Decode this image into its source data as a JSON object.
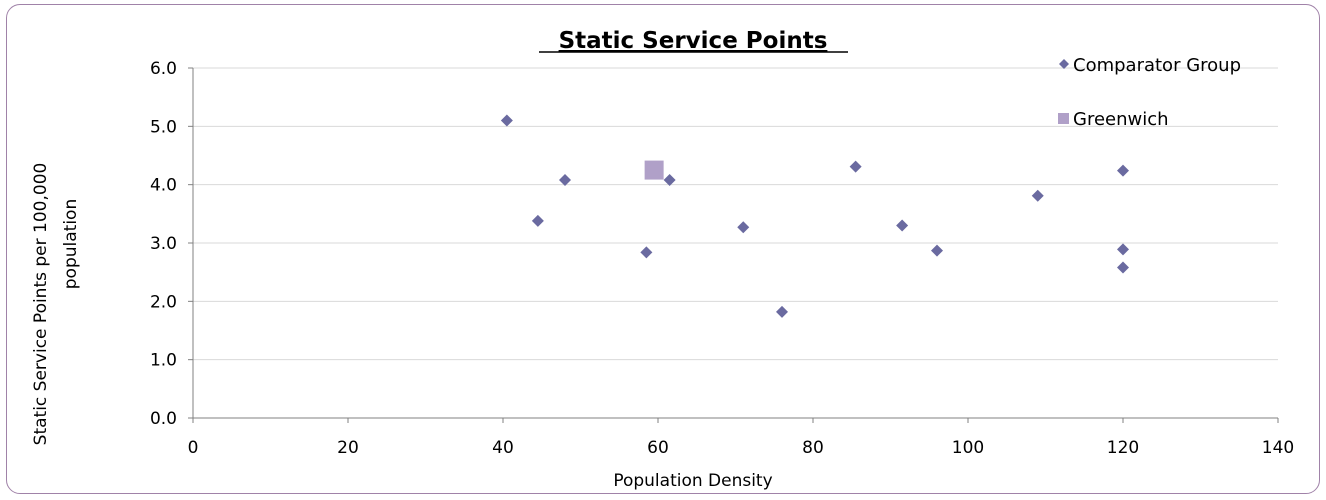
{
  "chart_data": {
    "type": "scatter",
    "title": "Static Service Points",
    "xlabel": "Population Density",
    "ylabel_lines": [
      "Static Service Points per 100,000",
      "population"
    ],
    "xlim": [
      0,
      140
    ],
    "ylim": [
      0,
      6
    ],
    "x_ticks": [
      0,
      20,
      40,
      60,
      80,
      100,
      120,
      140
    ],
    "y_ticks": [
      "0.0",
      "1.0",
      "2.0",
      "3.0",
      "4.0",
      "5.0",
      "6.0"
    ],
    "grid": "horizontal",
    "legend_position": "top-right",
    "series": [
      {
        "name": "Comparator Group",
        "marker": "diamond",
        "color": "#6a6aa0",
        "points": [
          [
            40.5,
            5.1
          ],
          [
            44.5,
            3.38
          ],
          [
            48,
            4.08
          ],
          [
            58.5,
            2.84
          ],
          [
            61.5,
            4.08
          ],
          [
            71,
            3.27
          ],
          [
            76,
            1.82
          ],
          [
            85.5,
            4.31
          ],
          [
            91.5,
            3.3
          ],
          [
            96,
            2.87
          ],
          [
            109,
            3.81
          ],
          [
            120,
            4.24
          ],
          [
            120,
            2.89
          ],
          [
            120,
            2.58
          ]
        ]
      },
      {
        "name": "Greenwich",
        "marker": "square",
        "color": "#b0a0c8",
        "points": [
          [
            59.5,
            4.25
          ]
        ]
      }
    ]
  }
}
